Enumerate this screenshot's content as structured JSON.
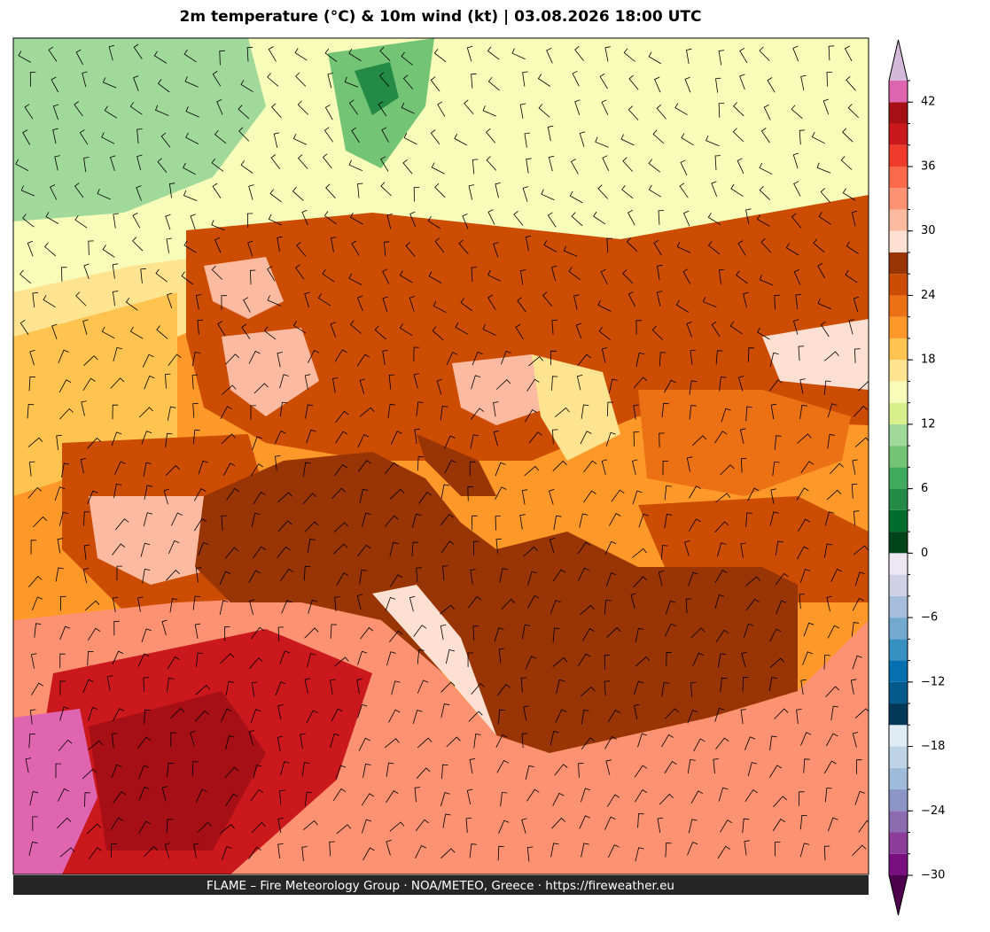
{
  "title": "2m temperature (°C) & 10m wind (kt)  |  03.08.2026 18:00 UTC",
  "footer": "FLAME – Fire Meteorology Group · NOA/METEO, Greece · https://fireweather.eu",
  "colorbar": {
    "range": [
      -30,
      44
    ],
    "levels": [
      -30,
      -28,
      -26,
      -24,
      -22,
      -20,
      -18,
      -16,
      -14,
      -12,
      -10,
      -8,
      -6,
      -4,
      -2,
      0,
      2,
      4,
      6,
      8,
      10,
      12,
      14,
      16,
      18,
      20,
      22,
      24,
      26,
      28,
      30,
      32,
      34,
      36,
      38,
      40,
      42,
      44
    ],
    "colors": [
      "#7a0f7f",
      "#8c3d99",
      "#8c6bb1",
      "#8c96c6",
      "#9ebcda",
      "#bfd3e6",
      "#e0ecf4",
      "#023858",
      "#045a8d",
      "#0570b0",
      "#3690c0",
      "#74a9cf",
      "#a6bddb",
      "#d0d1e6",
      "#ece7f2",
      "#00441b",
      "#006d2c",
      "#238b45",
      "#41ab5d",
      "#74c476",
      "#a1d99b",
      "#d9ef8b",
      "#f7fcb9",
      "#fee391",
      "#fec44f",
      "#fe9929",
      "#ec7014",
      "#cc4c02",
      "#993404",
      "#fee0d2",
      "#fcbba1",
      "#fc9272",
      "#fb6a4a",
      "#ef3b2c",
      "#cb181d",
      "#a50f15",
      "#df65b0"
    ],
    "under_color": "#4d004b",
    "over_color": "#d4b9da",
    "ticks": [
      {
        "value": -30,
        "label": "−30"
      },
      {
        "value": -24,
        "label": "−24"
      },
      {
        "value": -18,
        "label": "−18"
      },
      {
        "value": -12,
        "label": "−12"
      },
      {
        "value": -6,
        "label": "−6"
      },
      0,
      6,
      12,
      18,
      24,
      30,
      36,
      42
    ]
  }
}
